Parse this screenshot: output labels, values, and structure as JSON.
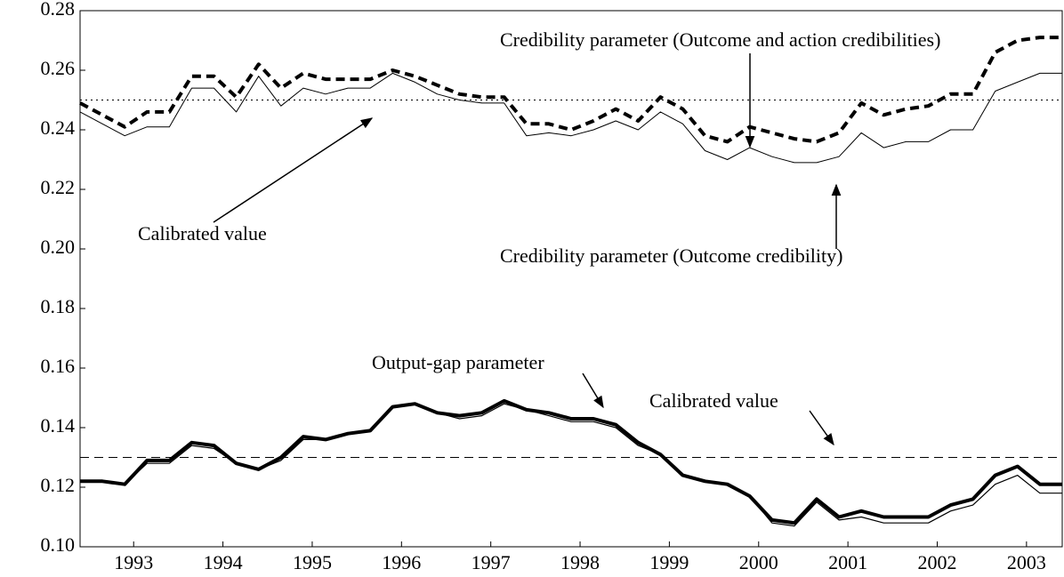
{
  "chart_data": {
    "type": "line",
    "x": [
      1992.4,
      1992.65,
      1992.9,
      1993.15,
      1993.4,
      1993.65,
      1993.9,
      1994.15,
      1994.4,
      1994.65,
      1994.9,
      1995.15,
      1995.4,
      1995.65,
      1995.9,
      1996.15,
      1996.4,
      1996.65,
      1996.9,
      1997.15,
      1997.4,
      1997.65,
      1997.9,
      1998.15,
      1998.4,
      1998.65,
      1998.9,
      1999.15,
      1999.4,
      1999.65,
      1999.9,
      2000.15,
      2000.4,
      2000.65,
      2000.9,
      2001.15,
      2001.4,
      2001.65,
      2001.9,
      2002.15,
      2002.4,
      2002.65,
      2002.9,
      2003.15,
      2003.4
    ],
    "series": [
      {
        "color": "#000",
        "width": 4,
        "dash": "10,6",
        "values": [
          0.249,
          0.245,
          0.241,
          0.246,
          0.246,
          0.258,
          0.258,
          0.251,
          0.262,
          0.254,
          0.259,
          0.257,
          0.257,
          0.257,
          0.26,
          0.258,
          0.255,
          0.252,
          0.251,
          0.251,
          0.242,
          0.242,
          0.24,
          0.243,
          0.247,
          0.243,
          0.251,
          0.247,
          0.238,
          0.236,
          0.241,
          0.239,
          0.237,
          0.236,
          0.239,
          0.249,
          0.245,
          0.247,
          0.248,
          0.252,
          0.252,
          0.266,
          0.27,
          0.271,
          0.271
        ]
      },
      {
        "color": "#000",
        "width": 1,
        "values": [
          0.246,
          0.242,
          0.238,
          0.241,
          0.241,
          0.254,
          0.254,
          0.246,
          0.258,
          0.248,
          0.254,
          0.252,
          0.254,
          0.254,
          0.259,
          0.256,
          0.252,
          0.25,
          0.249,
          0.249,
          0.238,
          0.239,
          0.238,
          0.24,
          0.243,
          0.24,
          0.246,
          0.242,
          0.233,
          0.23,
          0.234,
          0.231,
          0.229,
          0.229,
          0.231,
          0.239,
          0.234,
          0.236,
          0.236,
          0.24,
          0.24,
          0.253,
          0.256,
          0.259,
          0.259
        ]
      },
      {
        "color": "#000",
        "width": 4,
        "values": [
          0.122,
          0.122,
          0.121,
          0.129,
          0.129,
          0.135,
          0.134,
          0.128,
          0.126,
          0.13,
          0.137,
          0.136,
          0.138,
          0.139,
          0.147,
          0.148,
          0.145,
          0.144,
          0.145,
          0.149,
          0.146,
          0.145,
          0.143,
          0.143,
          0.141,
          0.135,
          0.131,
          0.124,
          0.122,
          0.121,
          0.117,
          0.109,
          0.108,
          0.116,
          0.11,
          0.112,
          0.11,
          0.11,
          0.11,
          0.114,
          0.116,
          0.124,
          0.127,
          0.121,
          0.121
        ]
      },
      {
        "color": "#000",
        "width": 1.2,
        "values": [
          0.122,
          0.122,
          0.121,
          0.128,
          0.128,
          0.134,
          0.133,
          0.128,
          0.126,
          0.129,
          0.136,
          0.136,
          0.138,
          0.139,
          0.147,
          0.148,
          0.145,
          0.143,
          0.144,
          0.148,
          0.146,
          0.144,
          0.142,
          0.142,
          0.14,
          0.134,
          0.131,
          0.124,
          0.122,
          0.121,
          0.117,
          0.108,
          0.107,
          0.115,
          0.109,
          0.11,
          0.108,
          0.108,
          0.108,
          0.112,
          0.114,
          0.121,
          0.124,
          0.118,
          0.118
        ]
      }
    ],
    "reference_lines": [
      {
        "value": 0.25,
        "dash": "2,4"
      },
      {
        "value": 0.13,
        "dash": "10,6"
      }
    ],
    "annotations": [
      "Credibility parameter (Outcome and action credibilities)",
      "Calibrated value",
      "Credibility parameter (Outcome credibility)",
      "Output-gap parameter",
      "Calibrated value"
    ],
    "xlim": [
      1992.4,
      2003.4
    ],
    "xticks": [
      1993,
      1994,
      1995,
      1996,
      1997,
      1998,
      1999,
      2000,
      2001,
      2002,
      2003
    ],
    "ylim": [
      0.1,
      0.28
    ],
    "yticks": [
      {
        "value": 0.1,
        "label": "0.10"
      },
      0.12,
      0.14,
      0.16,
      0.18,
      {
        "value": 0.2,
        "label": "0.20"
      },
      0.22,
      0.24,
      0.26,
      0.28
    ]
  }
}
